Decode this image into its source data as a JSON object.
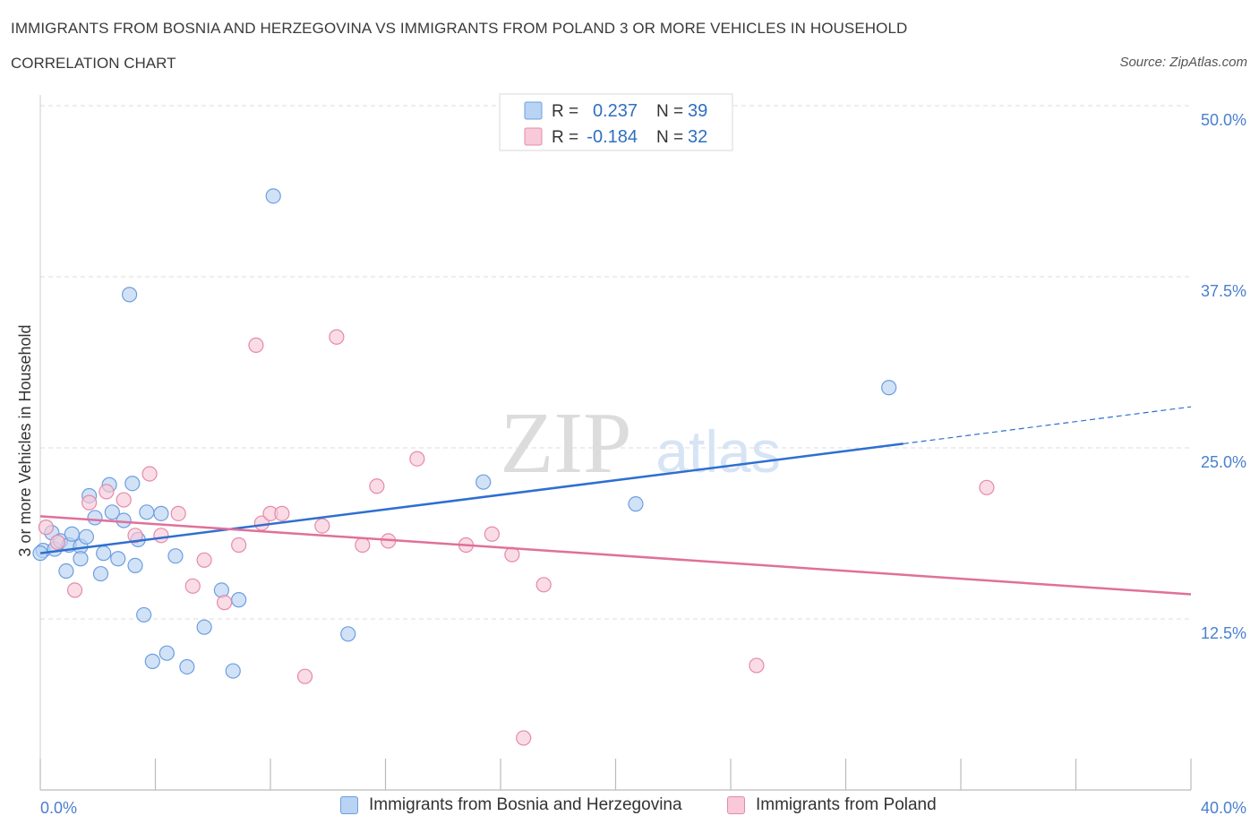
{
  "header": {
    "title": "IMMIGRANTS FROM BOSNIA AND HERZEGOVINA VS IMMIGRANTS FROM POLAND 3 OR MORE VEHICLES IN HOUSEHOLD",
    "subtitle": "CORRELATION CHART",
    "source": "Source: ZipAtlas.com"
  },
  "watermark": {
    "zip": "ZIP",
    "atlas": "atlas"
  },
  "legend_box": {
    "r_label": "R =",
    "n_label": "N =",
    "rows": [
      {
        "r": "0.237",
        "n": "39"
      },
      {
        "r": "-0.184",
        "n": "32"
      }
    ]
  },
  "bottom_legend": {
    "items": [
      "Immigrants from Bosnia and Herzegovina",
      "Immigrants from Poland"
    ]
  },
  "colors": {
    "blue_fill": "#b9d3f3",
    "blue_stroke": "#6d9ee0",
    "blue_line": "#2f6fd0",
    "pink_fill": "#f8c9d8",
    "pink_stroke": "#e58aa8",
    "pink_line": "#e0709a",
    "grid": "#dddddd"
  },
  "chart_data": {
    "type": "scatter",
    "title": "IMMIGRANTS FROM BOSNIA AND HERZEGOVINA VS IMMIGRANTS FROM POLAND 3 OR MORE VEHICLES IN HOUSEHOLD",
    "xlabel": "",
    "ylabel": "3 or more Vehicles in Household",
    "xlim": [
      0,
      40
    ],
    "ylim": [
      0,
      50
    ],
    "x_ticks": [
      {
        "value": 0,
        "label": "0.0%"
      },
      {
        "value": 40,
        "label": "40.0%"
      }
    ],
    "y_ticks": [
      {
        "value": 12.5,
        "label": "12.5%"
      },
      {
        "value": 25.0,
        "label": "25.0%"
      },
      {
        "value": 37.5,
        "label": "37.5%"
      },
      {
        "value": 50.0,
        "label": "50.0%"
      }
    ],
    "grid": true,
    "legend_position": "bottom",
    "series": [
      {
        "name": "Immigrants from Bosnia and Herzegovina",
        "r": 0.237,
        "n": 39,
        "trend": {
          "x0": 0,
          "y0": 17.3,
          "x1": 30,
          "y1": 25.3,
          "dashed_to_x": 40,
          "dashed_to_y": 28.0
        },
        "points": [
          [
            0.1,
            17.5
          ],
          [
            0.4,
            18.8
          ],
          [
            0.5,
            17.6
          ],
          [
            0.7,
            18.2
          ],
          [
            0.9,
            16.0
          ],
          [
            1.0,
            17.9
          ],
          [
            1.1,
            18.7
          ],
          [
            1.4,
            17.8
          ],
          [
            1.4,
            16.9
          ],
          [
            1.6,
            18.5
          ],
          [
            1.7,
            21.5
          ],
          [
            1.9,
            19.9
          ],
          [
            2.1,
            15.8
          ],
          [
            2.2,
            17.3
          ],
          [
            2.4,
            22.3
          ],
          [
            2.5,
            20.3
          ],
          [
            2.7,
            16.9
          ],
          [
            2.9,
            19.7
          ],
          [
            3.1,
            36.2
          ],
          [
            3.2,
            22.4
          ],
          [
            3.3,
            16.4
          ],
          [
            3.4,
            18.3
          ],
          [
            3.6,
            12.8
          ],
          [
            3.7,
            20.3
          ],
          [
            3.9,
            9.4
          ],
          [
            4.2,
            20.2
          ],
          [
            4.4,
            10.0
          ],
          [
            4.7,
            17.1
          ],
          [
            5.1,
            9.0
          ],
          [
            5.7,
            11.9
          ],
          [
            6.3,
            14.6
          ],
          [
            6.7,
            8.7
          ],
          [
            6.9,
            13.9
          ],
          [
            8.1,
            43.4
          ],
          [
            10.7,
            11.4
          ],
          [
            15.4,
            22.5
          ],
          [
            20.7,
            20.9
          ],
          [
            29.5,
            29.4
          ],
          [
            0.0,
            17.3
          ]
        ]
      },
      {
        "name": "Immigrants from Poland",
        "r": -0.184,
        "n": 32,
        "trend": {
          "x0": 0,
          "y0": 20.0,
          "x1": 40,
          "y1": 14.3
        },
        "points": [
          [
            0.2,
            19.2
          ],
          [
            0.6,
            18.1
          ],
          [
            1.2,
            14.6
          ],
          [
            1.7,
            21.0
          ],
          [
            2.3,
            21.8
          ],
          [
            2.9,
            21.2
          ],
          [
            3.3,
            18.6
          ],
          [
            3.8,
            23.1
          ],
          [
            4.2,
            18.6
          ],
          [
            4.8,
            20.2
          ],
          [
            5.3,
            14.9
          ],
          [
            5.7,
            16.8
          ],
          [
            6.4,
            13.7
          ],
          [
            6.9,
            17.9
          ],
          [
            7.5,
            32.5
          ],
          [
            7.7,
            19.5
          ],
          [
            8.0,
            20.2
          ],
          [
            8.4,
            20.2
          ],
          [
            9.2,
            8.3
          ],
          [
            9.8,
            19.3
          ],
          [
            10.3,
            33.1
          ],
          [
            11.2,
            17.9
          ],
          [
            11.7,
            22.2
          ],
          [
            12.1,
            18.2
          ],
          [
            13.1,
            24.2
          ],
          [
            14.8,
            17.9
          ],
          [
            15.7,
            18.7
          ],
          [
            16.4,
            17.2
          ],
          [
            16.8,
            3.8
          ],
          [
            17.5,
            15.0
          ],
          [
            24.9,
            9.1
          ],
          [
            32.9,
            22.1
          ]
        ]
      }
    ]
  }
}
